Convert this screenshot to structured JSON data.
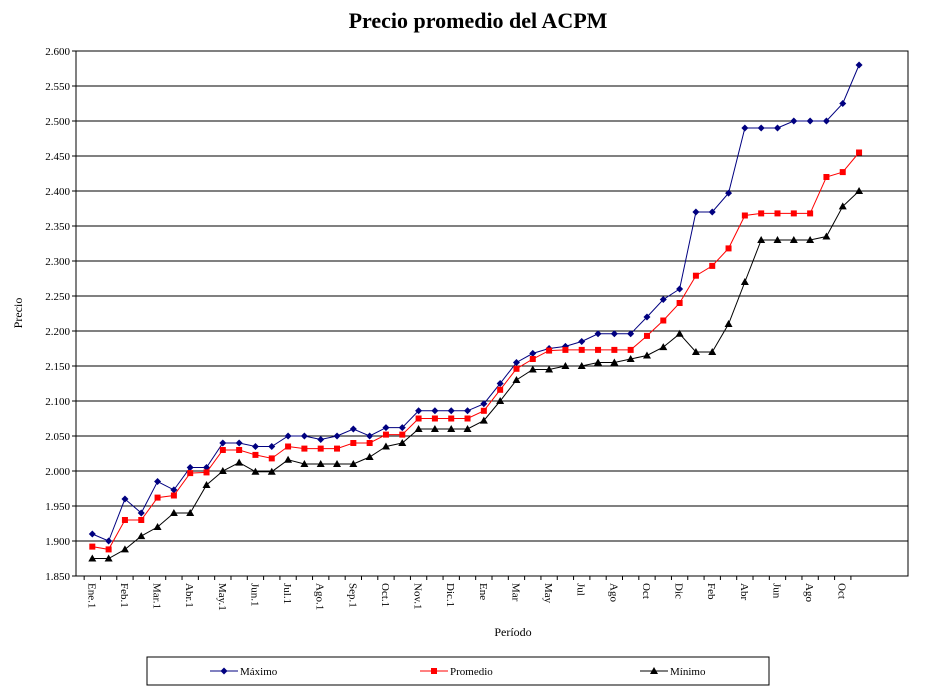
{
  "chart_data": {
    "type": "line",
    "title": "Precio promedio del ACPM",
    "x_label": "Período",
    "y_label": "Precio",
    "categories": [
      "Ene.1",
      null,
      "Feb.1",
      null,
      "Mar.1",
      null,
      "Abr.1",
      null,
      "May.1",
      null,
      "Jun.1",
      null,
      "Jul.1",
      null,
      "Ago.1",
      null,
      "Sep.1",
      null,
      "Oct.1",
      null,
      "Nov.1",
      null,
      "Dic.1",
      null,
      "Ene",
      null,
      "Mar",
      null,
      "May",
      null,
      "Jul",
      null,
      "Ago",
      null,
      "Oct",
      null,
      "Dic",
      null,
      "Feb",
      null,
      "Abr",
      null,
      "Jun",
      null,
      "Ago",
      null,
      "Oct",
      null
    ],
    "series": [
      {
        "name": "Máximo",
        "color": "#000080",
        "marker": "diamond",
        "values": [
          1910,
          1900,
          1960,
          1940,
          1985,
          1973,
          2005,
          2005,
          2040,
          2040,
          2035,
          2035,
          2050,
          2050,
          2045,
          2050,
          2060,
          2050,
          2062,
          2062,
          2086,
          2086,
          2086,
          2086,
          2096,
          2125,
          2155,
          2168,
          2175,
          2178,
          2185,
          2196,
          2196,
          2196,
          2220,
          2245,
          2260,
          2370,
          2370,
          2397,
          2490,
          2490,
          2490,
          2500,
          2500,
          2500,
          2525,
          2580
        ]
      },
      {
        "name": "Promedio",
        "color": "#ff0000",
        "marker": "square",
        "values": [
          1892,
          1888,
          1930,
          1930,
          1962,
          1965,
          1997,
          1998,
          2030,
          2030,
          2023,
          2018,
          2035,
          2032,
          2032,
          2032,
          2040,
          2040,
          2052,
          2052,
          2075,
          2075,
          2075,
          2075,
          2086,
          2116,
          2146,
          2160,
          2172,
          2173,
          2173,
          2173,
          2173,
          2173,
          2193,
          2215,
          2240,
          2279,
          2293,
          2318,
          2365,
          2368,
          2368,
          2368,
          2368,
          2420,
          2427,
          2455
        ]
      },
      {
        "name": "Mínimo",
        "color": "#000000",
        "marker": "triangle",
        "values": [
          1875,
          1875,
          1888,
          1907,
          1920,
          1940,
          1940,
          1980,
          2000,
          2012,
          1999,
          1999,
          2016,
          2010,
          2010,
          2010,
          2010,
          2020,
          2035,
          2040,
          2060,
          2060,
          2060,
          2060,
          2072,
          2100,
          2130,
          2145,
          2145,
          2150,
          2150,
          2155,
          2155,
          2160,
          2165,
          2177,
          2196,
          2170,
          2170,
          2210,
          2270,
          2330,
          2330,
          2330,
          2330,
          2335,
          2378,
          2400
        ]
      }
    ],
    "ylim": [
      1850,
      2600
    ],
    "yticks": [
      {
        "value": 1850,
        "label": "1.850"
      },
      {
        "value": 1900,
        "label": "1.900"
      },
      {
        "value": 1950,
        "label": "1.950"
      },
      {
        "value": 2000,
        "label": "2.000"
      },
      {
        "value": 2050,
        "label": "2.050"
      },
      {
        "value": 2100,
        "label": "2.100"
      },
      {
        "value": 2150,
        "label": "2.150"
      },
      {
        "value": 2200,
        "label": "2.200"
      },
      {
        "value": 2250,
        "label": "2.250"
      },
      {
        "value": 2300,
        "label": "2.300"
      },
      {
        "value": 2350,
        "label": "2.350"
      },
      {
        "value": 2400,
        "label": "2.400"
      },
      {
        "value": 2450,
        "label": "2.450"
      },
      {
        "value": 2500,
        "label": "2.500"
      },
      {
        "value": 2550,
        "label": "2.550"
      },
      {
        "value": 2600,
        "label": "2.600"
      }
    ],
    "grid": true,
    "legend": "bottom"
  }
}
